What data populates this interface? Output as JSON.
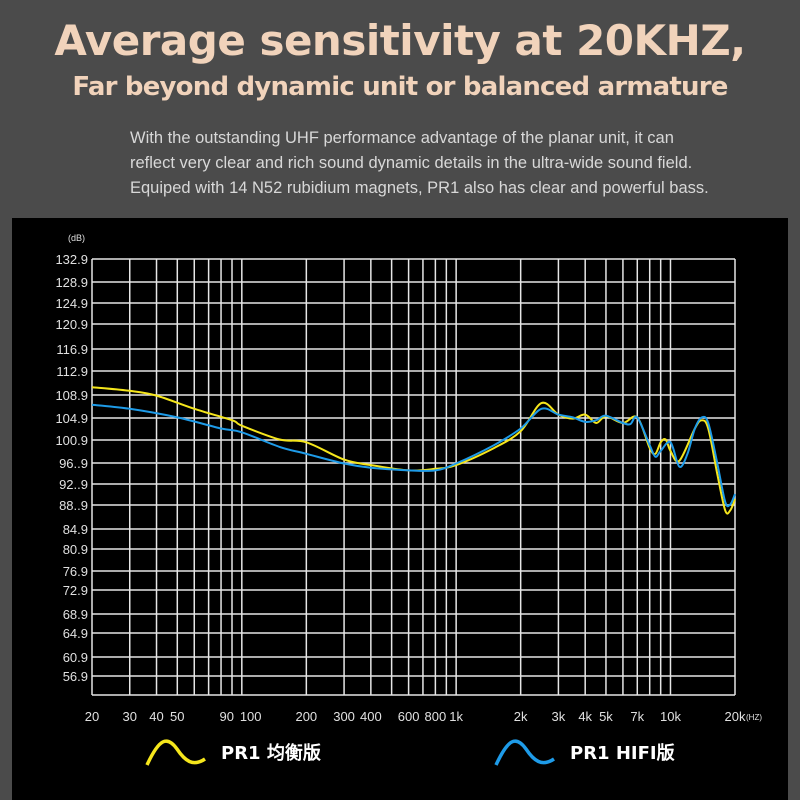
{
  "header": {
    "title": "Average sensitivity at 20KHZ,",
    "subtitle": "Far beyond dynamic unit or balanced armature",
    "description": [
      "With the outstanding UHF performance advantage of the planar unit, it can",
      "reflect very clear and rich sound dynamic details in the ultra-wide sound field.",
      "Equiped with 14 N52 rubidium magnets, PR1 also has clear and powerful bass."
    ]
  },
  "chart_data": {
    "type": "line",
    "title": "",
    "ylabel": "(dB)",
    "xlabel": "(HZ)",
    "xscale": "log",
    "xlim": [
      20,
      20000
    ],
    "ylim": [
      52.9,
      132.9
    ],
    "grid": true,
    "legend_placement": "bottom",
    "y_tick_labels": [
      "132.9",
      "128.9",
      "124.9",
      "120.9",
      "116.9",
      "112.9",
      "108.9",
      "104.9",
      "100.9",
      "96..9",
      "92..9",
      "88..9",
      "84.9",
      "80.9",
      "76.9",
      "72.9",
      "68.9",
      "64.9",
      "60.9",
      "56.9"
    ],
    "y_tick_values": [
      132.9,
      128.9,
      124.9,
      120.9,
      116.9,
      112.9,
      108.9,
      104.9,
      100.9,
      96.9,
      92.9,
      88.9,
      84.9,
      80.9,
      76.9,
      72.9,
      68.9,
      64.9,
      60.9,
      56.9
    ],
    "x_gridlines": [
      20,
      30,
      40,
      50,
      60,
      70,
      80,
      90,
      100,
      200,
      300,
      400,
      500,
      600,
      700,
      800,
      900,
      1000,
      2000,
      3000,
      4000,
      5000,
      6000,
      7000,
      8000,
      9000,
      10000,
      20000
    ],
    "x_tick_labels": [
      {
        "v": 20,
        "t": "20"
      },
      {
        "v": 30,
        "t": "30"
      },
      {
        "v": 40,
        "t": "40"
      },
      {
        "v": 50,
        "t": "50"
      },
      {
        "v": 90,
        "t": "90"
      },
      {
        "v": 100,
        "t": "100"
      },
      {
        "v": 200,
        "t": "200"
      },
      {
        "v": 300,
        "t": "300"
      },
      {
        "v": 400,
        "t": "400"
      },
      {
        "v": 600,
        "t": "600"
      },
      {
        "v": 800,
        "t": "800"
      },
      {
        "v": 1000,
        "t": "1k"
      },
      {
        "v": 2000,
        "t": "2k"
      },
      {
        "v": 3000,
        "t": "3k"
      },
      {
        "v": 4000,
        "t": "4k"
      },
      {
        "v": 5000,
        "t": "5k"
      },
      {
        "v": 7000,
        "t": "7k"
      },
      {
        "v": 10000,
        "t": "10k"
      },
      {
        "v": 20000,
        "t": "20k"
      }
    ],
    "series": [
      {
        "name": "PR1 均衡版",
        "color": "#f5e61c",
        "x": [
          20,
          30,
          40,
          60,
          90,
          100,
          150,
          200,
          300,
          400,
          600,
          800,
          1000,
          1500,
          2000,
          2500,
          3000,
          3500,
          4000,
          4500,
          5000,
          6000,
          7000,
          8000,
          8500,
          9000,
          9500,
          10000,
          11000,
          13000,
          14000,
          15000,
          16500,
          18000,
          19000,
          20000
        ],
        "y": [
          110.2,
          109.6,
          108.8,
          106.5,
          104.5,
          103.5,
          101,
          100.5,
          97.5,
          96.5,
          95.5,
          95.8,
          96.5,
          99.5,
          102.5,
          107.5,
          105.5,
          104.8,
          105.5,
          104,
          105.2,
          104,
          105,
          99.5,
          98.5,
          100.5,
          101,
          99,
          97.3,
          103,
          104.5,
          103,
          95,
          88,
          88,
          90
        ]
      },
      {
        "name": "PR1 HIFI版",
        "color": "#1e9be8",
        "x": [
          20,
          30,
          50,
          80,
          100,
          150,
          200,
          300,
          400,
          600,
          800,
          1000,
          1500,
          2000,
          2500,
          3000,
          3500,
          4000,
          4500,
          5000,
          6000,
          6500,
          7000,
          8000,
          8500,
          9000,
          10000,
          11000,
          12000,
          13000,
          14000,
          15000,
          16500,
          18000,
          19000,
          20000
        ],
        "y": [
          107.2,
          106.5,
          105,
          103,
          102.3,
          99.7,
          98.5,
          96.8,
          96,
          95.5,
          95.5,
          96.8,
          100,
          103,
          106.5,
          105.5,
          105,
          104.2,
          104.5,
          105.3,
          104,
          103.8,
          105,
          100,
          98,
          99,
          100.5,
          96.2,
          98.5,
          103,
          105,
          104,
          97,
          89.5,
          89,
          91
        ]
      }
    ]
  }
}
